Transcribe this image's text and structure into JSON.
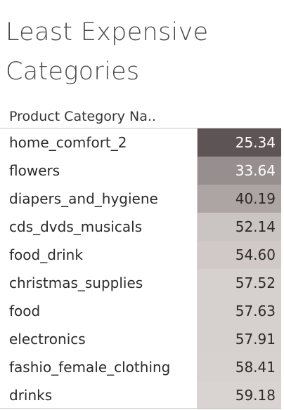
{
  "title": {
    "line1": "Least Expensive",
    "line2": "Categories"
  },
  "chart_data": {
    "type": "table",
    "title": "Least Expensive Categories",
    "column_header": "Product Category Na..",
    "rows": [
      {
        "category": "home_comfort_2",
        "value": "25.34"
      },
      {
        "category": "flowers",
        "value": "33.64"
      },
      {
        "category": "diapers_and_hygiene",
        "value": "40.19"
      },
      {
        "category": "cds_dvds_musicals",
        "value": "52.14"
      },
      {
        "category": "food_drink",
        "value": "54.60"
      },
      {
        "category": "christmas_supplies",
        "value": "57.52"
      },
      {
        "category": "food",
        "value": "57.63"
      },
      {
        "category": "electronics",
        "value": "57.91"
      },
      {
        "category": "fashio_female_clothing",
        "value": "58.41"
      },
      {
        "category": "drinks",
        "value": "59.18"
      }
    ],
    "color_scale": {
      "low_color": "#5e5455",
      "high_color": "#d9d3d2",
      "min": 25.34,
      "max": 59.18
    }
  }
}
